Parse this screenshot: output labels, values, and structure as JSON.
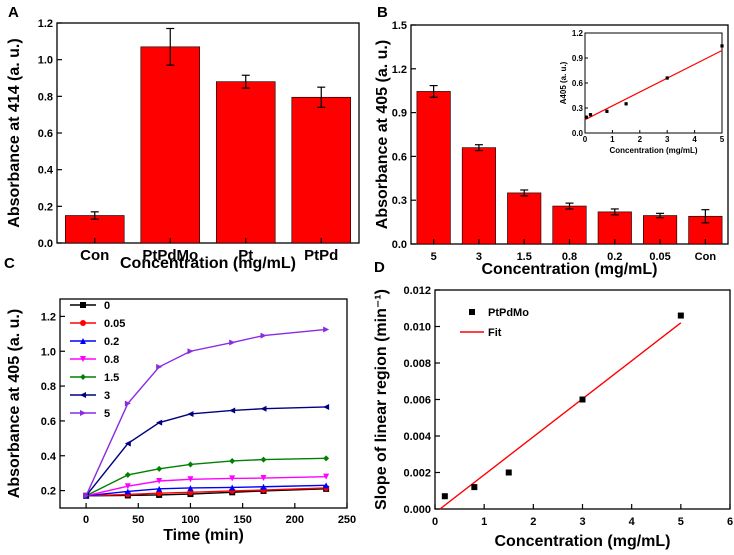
{
  "chart_data": [
    {
      "panel": "A",
      "type": "bar",
      "categories": [
        "Con",
        "PtPdMo",
        "Pt",
        "PtPd"
      ],
      "values": [
        0.15,
        1.07,
        0.88,
        0.795
      ],
      "errors": [
        0.02,
        0.1,
        0.035,
        0.055
      ],
      "bar_color": "#ff0000",
      "xlabel": "Concentration (mg/mL)",
      "ylabel": "Absorbance at 414 (a. u.)",
      "ylim": [
        0,
        1.2
      ],
      "yticks": [
        "0.0",
        "0.2",
        "0.4",
        "0.6",
        "0.8",
        "1.0",
        "1.2"
      ]
    },
    {
      "panel": "B",
      "type": "bar",
      "categories": [
        "5",
        "3",
        "1.5",
        "0.8",
        "0.2",
        "0.05",
        "Con"
      ],
      "values": [
        1.045,
        0.66,
        0.35,
        0.26,
        0.22,
        0.195,
        0.19
      ],
      "errors": [
        0.04,
        0.02,
        0.02,
        0.02,
        0.02,
        0.015,
        0.045
      ],
      "bar_color": "#ff0000",
      "xlabel": "Concentration (mg/mL)",
      "ylabel": "Absorbance at 405 (a. u.)",
      "ylim": [
        0,
        1.5
      ],
      "yticks": [
        "0.0",
        "0.3",
        "0.6",
        "0.9",
        "1.2",
        "1.5"
      ],
      "inset": {
        "type": "scatter",
        "x": [
          0.05,
          0.2,
          0.8,
          1.5,
          3,
          5
        ],
        "y": [
          0.19,
          0.22,
          0.26,
          0.35,
          0.66,
          1.045
        ],
        "errors": [
          0.015,
          0.02,
          0.02,
          0.02,
          0.02,
          0.04
        ],
        "fit": {
          "x": [
            0,
            5
          ],
          "y": [
            0.16,
            0.99
          ]
        },
        "xlabel": "Concentration (mg/mL)",
        "ylabel": "A405 (a. u.)",
        "xlim": [
          0,
          5
        ],
        "ylim": [
          0,
          1.2
        ],
        "xticks": [
          "0",
          "1",
          "2",
          "3",
          "4",
          "5"
        ],
        "yticks": [
          "0.0",
          "0.3",
          "0.6",
          "0.9",
          "1.2"
        ]
      }
    },
    {
      "panel": "C",
      "type": "line",
      "xlabel": "Time (min)",
      "ylabel": "Absorbance at 405 (a. u.)",
      "xlim": [
        -25,
        250
      ],
      "ylim": [
        0.1,
        1.3
      ],
      "xticks": [
        "0",
        "50",
        "100",
        "150",
        "200",
        "250"
      ],
      "yticks": [
        "0.2",
        "0.4",
        "0.6",
        "0.8",
        "1.0",
        "1.2"
      ],
      "legend_position": "upper-left",
      "series": [
        {
          "name": "0",
          "color": "#000000",
          "marker": "square",
          "x": [
            0,
            40,
            70,
            100,
            140,
            170,
            230
          ],
          "y": [
            0.17,
            0.172,
            0.175,
            0.18,
            0.19,
            0.198,
            0.21
          ]
        },
        {
          "name": "0.05",
          "color": "#ff0000",
          "marker": "circle",
          "x": [
            0,
            40,
            70,
            100,
            140,
            170,
            230
          ],
          "y": [
            0.17,
            0.178,
            0.185,
            0.19,
            0.198,
            0.203,
            0.215
          ]
        },
        {
          "name": "0.2",
          "color": "#0000ff",
          "marker": "triangle-up",
          "x": [
            0,
            40,
            70,
            100,
            140,
            170,
            230
          ],
          "y": [
            0.17,
            0.195,
            0.21,
            0.215,
            0.218,
            0.222,
            0.23
          ]
        },
        {
          "name": "0.8",
          "color": "#ff00ff",
          "marker": "triangle-down",
          "x": [
            0,
            40,
            70,
            100,
            140,
            170,
            230
          ],
          "y": [
            0.17,
            0.225,
            0.255,
            0.265,
            0.27,
            0.272,
            0.28
          ]
        },
        {
          "name": "1.5",
          "color": "#008000",
          "marker": "diamond",
          "x": [
            0,
            40,
            70,
            100,
            140,
            170,
            230
          ],
          "y": [
            0.17,
            0.29,
            0.325,
            0.35,
            0.37,
            0.378,
            0.385
          ]
        },
        {
          "name": "3",
          "color": "#000080",
          "marker": "triangle-left",
          "x": [
            0,
            40,
            70,
            100,
            140,
            170,
            230
          ],
          "y": [
            0.17,
            0.47,
            0.59,
            0.64,
            0.66,
            0.67,
            0.68
          ]
        },
        {
          "name": "5",
          "color": "#8a2be2",
          "marker": "triangle-right",
          "x": [
            0,
            40,
            70,
            100,
            140,
            170,
            230
          ],
          "y": [
            0.17,
            0.7,
            0.91,
            1.0,
            1.05,
            1.09,
            1.125
          ]
        }
      ]
    },
    {
      "panel": "D",
      "type": "scatter",
      "xlabel": "Concentration (mg/mL)",
      "ylabel": "Slope of linear region (min⁻¹)",
      "xlim": [
        0,
        6
      ],
      "ylim": [
        0,
        0.012
      ],
      "xticks": [
        "0",
        "1",
        "2",
        "3",
        "4",
        "5",
        "6"
      ],
      "yticks": [
        "0.000",
        "0.002",
        "0.004",
        "0.006",
        "0.008",
        "0.010",
        "0.012"
      ],
      "legend_position": "upper-left",
      "legend": [
        "PtPdMo",
        "Fit"
      ],
      "points": {
        "name": "PtPdMo",
        "x": [
          0.2,
          0.8,
          1.5,
          3,
          5
        ],
        "y": [
          0.0007,
          0.0012,
          0.002,
          0.006,
          0.0106
        ]
      },
      "fit": {
        "name": "Fit",
        "x": [
          0.1,
          5
        ],
        "y": [
          0,
          0.0102
        ]
      },
      "point_color": "#000000",
      "fit_color": "#ff0000"
    }
  ],
  "panel_letters": [
    "A",
    "B",
    "C",
    "D"
  ]
}
